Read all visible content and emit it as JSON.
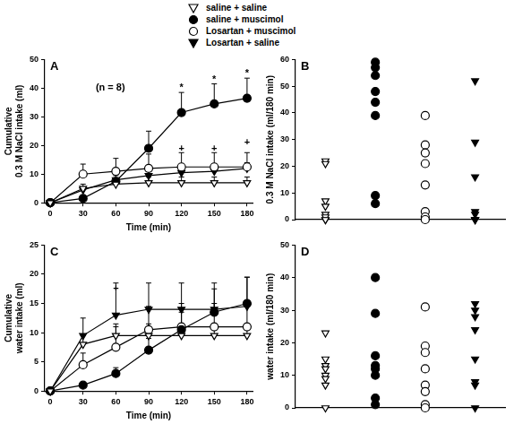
{
  "chart_data": [
    {
      "type": "line",
      "title": "A",
      "x_label": "Time (min)",
      "y_label": [
        "Cumulative",
        "0.3 M NaCl intake (ml)"
      ],
      "x": [
        0,
        30,
        60,
        90,
        120,
        150,
        180
      ],
      "xlim": [
        -5,
        185
      ],
      "xticks": [
        0,
        30,
        60,
        90,
        120,
        150,
        180
      ],
      "ylim": [
        0,
        50
      ],
      "yticks": [
        0,
        10,
        20,
        30,
        40,
        50
      ],
      "grid": false,
      "legend": "top",
      "series": [
        {
          "name": "saline + saline",
          "color": "#000000",
          "marker": "open-triangle-down",
          "line_style": "solid",
          "values": [
            0,
            5,
            6.5,
            7,
            7,
            7,
            7
          ],
          "errors": [
            0,
            1.5,
            2,
            2,
            2,
            2,
            2
          ]
        },
        {
          "name": "saline + muscimol",
          "color": "#000000",
          "marker": "circle",
          "line_style": "solid",
          "values": [
            0,
            1.5,
            7.5,
            19,
            31.5,
            34.5,
            36.5
          ],
          "errors": [
            0,
            1,
            2,
            6,
            7,
            7,
            7
          ]
        },
        {
          "name": "Losartan + muscimol",
          "color": "#000000",
          "marker": "open-circle",
          "line_style": "solid",
          "values": [
            0,
            10,
            11,
            12,
            12.5,
            12.5,
            12.5
          ],
          "errors": [
            0,
            3.5,
            4.5,
            5,
            5,
            5,
            5
          ]
        },
        {
          "name": "Losartan + saline",
          "color": "#000000",
          "marker": "triangle-down",
          "line_style": "solid",
          "values": [
            0,
            4.5,
            8,
            9.5,
            10.5,
            11,
            12
          ],
          "errors": [
            0,
            1,
            2,
            2,
            2,
            2.5,
            2
          ]
        }
      ],
      "annotations": [
        {
          "text": "(n = 8)",
          "x": 55,
          "y": 40
        },
        {
          "text": "*",
          "x": 120,
          "y": 40
        },
        {
          "text": "*",
          "x": 150,
          "y": 43
        },
        {
          "text": "*",
          "x": 180,
          "y": 45
        },
        {
          "text": "+",
          "x": 120,
          "y": 19
        },
        {
          "text": "+",
          "x": 150,
          "y": 19
        },
        {
          "text": "+",
          "x": 180,
          "y": 21
        }
      ]
    },
    {
      "type": "scatter",
      "title": "B",
      "y_label": [
        "0.3 M NaCl intake (ml/180 min)"
      ],
      "ylim": [
        0,
        60
      ],
      "yticks": [
        0,
        10,
        20,
        30,
        40,
        50,
        60
      ],
      "grid": false,
      "tick_labels": "y",
      "series": [
        {
          "name": "saline + saline",
          "color": "#000000",
          "marker": "open-triangle-down",
          "values": [
            22,
            21,
            7,
            5,
            2,
            1,
            0,
            0
          ]
        },
        {
          "name": "saline + muscimol",
          "color": "#000000",
          "marker": "circle",
          "values": [
            59,
            57,
            54,
            48,
            44,
            39,
            9,
            6
          ]
        },
        {
          "name": "Losartan + muscimol",
          "color": "#000000",
          "marker": "open-circle",
          "values": [
            39,
            28,
            25,
            21,
            13,
            3,
            1,
            0
          ]
        },
        {
          "name": "Losartan + saline",
          "color": "#000000",
          "marker": "triangle-down",
          "values": [
            52,
            29,
            16,
            3,
            2,
            0,
            0,
            0
          ]
        }
      ]
    },
    {
      "type": "line",
      "title": "C",
      "x_label": "Time (min)",
      "y_label": [
        "Cumulative",
        "water intake (ml)"
      ],
      "x": [
        0,
        30,
        60,
        90,
        120,
        150,
        180
      ],
      "xlim": [
        -5,
        185
      ],
      "xticks": [
        0,
        30,
        60,
        90,
        120,
        150,
        180
      ],
      "ylim": [
        0,
        25
      ],
      "yticks": [
        0,
        5,
        10,
        15,
        20,
        25
      ],
      "grid": false,
      "series": [
        {
          "name": "saline + saline",
          "color": "#000000",
          "marker": "open-triangle-down",
          "line_style": "solid",
          "values": [
            0,
            8,
            9.5,
            9.5,
            9.5,
            9.5,
            9.5
          ],
          "errors": [
            0,
            1.5,
            2,
            2,
            2,
            2,
            2
          ]
        },
        {
          "name": "saline + muscimol",
          "color": "#000000",
          "marker": "circle",
          "line_style": "solid",
          "values": [
            0,
            1,
            3,
            7,
            10.5,
            13.5,
            15
          ],
          "errors": [
            0,
            0.5,
            1,
            2,
            3,
            4,
            4.5
          ]
        },
        {
          "name": "Losartan + muscimol",
          "color": "#000000",
          "marker": "open-circle",
          "line_style": "solid",
          "values": [
            0,
            4.5,
            7.5,
            10.5,
            11,
            11,
            11
          ],
          "errors": [
            0,
            2,
            3.5,
            4,
            4,
            4,
            4
          ]
        },
        {
          "name": "Losartan + saline",
          "color": "#000000",
          "marker": "triangle-down",
          "line_style": "solid",
          "values": [
            0,
            9.5,
            13,
            14,
            14,
            14,
            14.5
          ],
          "errors": [
            0,
            3,
            5.5,
            4.5,
            4.5,
            4.5,
            5
          ]
        }
      ],
      "annotations": [
        {
          "text": "+",
          "x": 60,
          "y": 17.5
        }
      ]
    },
    {
      "type": "scatter",
      "title": "D",
      "y_label": [
        "water intake (ml/180 min)"
      ],
      "ylim": [
        0,
        50
      ],
      "yticks": [
        0,
        10,
        20,
        30,
        40,
        50
      ],
      "grid": false,
      "tick_labels": "y",
      "series": [
        {
          "name": "saline + saline",
          "color": "#000000",
          "marker": "open-triangle-down",
          "values": [
            23,
            15,
            13,
            12,
            10,
            9,
            7,
            0
          ]
        },
        {
          "name": "saline + muscimol",
          "color": "#000000",
          "marker": "circle",
          "values": [
            40,
            29,
            16,
            13,
            12,
            10,
            3,
            1
          ]
        },
        {
          "name": "Losartan + muscimol",
          "color": "#000000",
          "marker": "open-circle",
          "values": [
            31,
            19,
            17,
            12,
            7,
            5,
            1,
            0
          ]
        },
        {
          "name": "Losartan + saline",
          "color": "#000000",
          "marker": "triangle-down",
          "values": [
            32,
            30,
            28,
            24,
            15,
            8,
            7,
            0
          ]
        }
      ]
    }
  ]
}
